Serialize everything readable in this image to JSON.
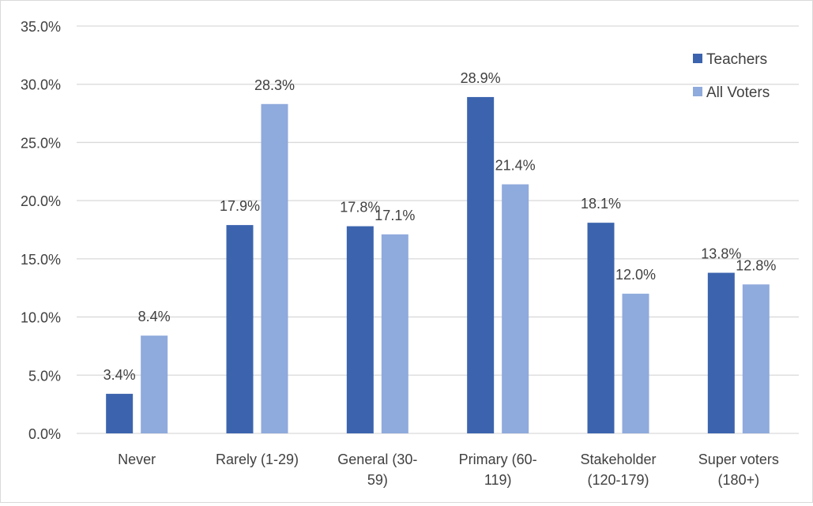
{
  "chart_data": {
    "type": "bar",
    "categories": [
      [
        "Never"
      ],
      [
        "Rarely (1-29)"
      ],
      [
        "General (30-",
        "59)"
      ],
      [
        "Primary (60-",
        "119)"
      ],
      [
        "Stakeholder",
        "(120-179)"
      ],
      [
        "Super voters",
        "(180+)"
      ]
    ],
    "series": [
      {
        "name": "Teachers",
        "color": "#3c64ae",
        "values": [
          3.4,
          17.9,
          17.8,
          28.9,
          18.1,
          13.8
        ],
        "labels": [
          "3.4%",
          "17.9%",
          "17.8%",
          "28.9%",
          "18.1%",
          "13.8%"
        ]
      },
      {
        "name": "All Voters",
        "color": "#8faadc",
        "values": [
          8.4,
          28.3,
          17.1,
          21.4,
          12.0,
          12.8
        ],
        "labels": [
          "8.4%",
          "28.3%",
          "17.1%",
          "21.4%",
          "12.0%",
          "12.8%"
        ]
      }
    ],
    "y_ticks": [
      "0.0%",
      "5.0%",
      "10.0%",
      "15.0%",
      "20.0%",
      "25.0%",
      "30.0%",
      "35.0%"
    ],
    "ylim": [
      0,
      35
    ],
    "grid": true,
    "legend_position": "top-right",
    "gridline_color": "#d9d9d9"
  }
}
